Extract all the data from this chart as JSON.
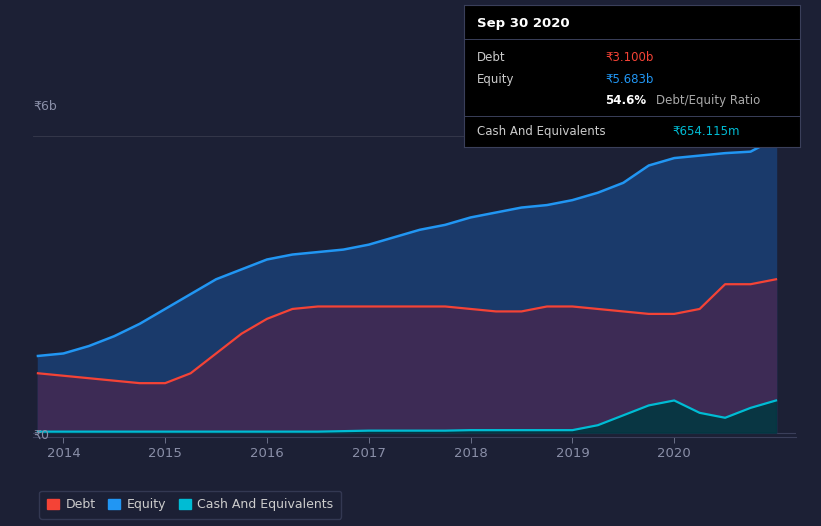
{
  "background_color": "#1c2035",
  "plot_bg_color": "#1c2035",
  "tooltip_box": {
    "title": "Sep 30 2020",
    "debt_label": "Debt",
    "debt_value": "₹3.100b",
    "equity_label": "Equity",
    "equity_value": "₹5.683b",
    "ratio_value": "54.6%",
    "ratio_label": " Debt/Equity Ratio",
    "cash_label": "Cash And Equivalents",
    "cash_value": "₹654.115m"
  },
  "ylabel_top": "₹6b",
  "ylabel_bottom": "₹0",
  "x_ticks": [
    2014,
    2015,
    2016,
    2017,
    2018,
    2019,
    2020
  ],
  "x_min": 2013.7,
  "x_max": 2021.2,
  "y_min": -0.08,
  "y_max": 6.3,
  "equity_color": "#2196f3",
  "debt_color": "#f44336",
  "cash_color": "#00bcd4",
  "equity_fill_color": "#1a3a6b",
  "debt_fill_color": "#3d2b55",
  "cash_fill_color": "#003840",
  "legend_items": [
    "Debt",
    "Equity",
    "Cash And Equivalents"
  ],
  "legend_colors": [
    "#f44336",
    "#2196f3",
    "#00bcd4"
  ],
  "years": [
    2013.75,
    2014.0,
    2014.25,
    2014.5,
    2014.75,
    2015.0,
    2015.25,
    2015.5,
    2015.75,
    2016.0,
    2016.25,
    2016.5,
    2016.75,
    2017.0,
    2017.25,
    2017.5,
    2017.75,
    2018.0,
    2018.25,
    2018.5,
    2018.75,
    2019.0,
    2019.25,
    2019.5,
    2019.75,
    2020.0,
    2020.25,
    2020.5,
    2020.75,
    2021.0
  ],
  "equity_data": [
    1.55,
    1.6,
    1.75,
    1.95,
    2.2,
    2.5,
    2.8,
    3.1,
    3.3,
    3.5,
    3.6,
    3.65,
    3.7,
    3.8,
    3.95,
    4.1,
    4.2,
    4.35,
    4.45,
    4.55,
    4.6,
    4.7,
    4.85,
    5.05,
    5.4,
    5.55,
    5.6,
    5.65,
    5.68,
    5.95
  ],
  "debt_data": [
    1.2,
    1.15,
    1.1,
    1.05,
    1.0,
    1.0,
    1.2,
    1.6,
    2.0,
    2.3,
    2.5,
    2.55,
    2.55,
    2.55,
    2.55,
    2.55,
    2.55,
    2.5,
    2.45,
    2.45,
    2.55,
    2.55,
    2.5,
    2.45,
    2.4,
    2.4,
    2.5,
    3.0,
    3.0,
    3.1
  ],
  "cash_data": [
    0.02,
    0.02,
    0.02,
    0.02,
    0.02,
    0.02,
    0.02,
    0.02,
    0.02,
    0.02,
    0.02,
    0.02,
    0.03,
    0.04,
    0.04,
    0.04,
    0.04,
    0.05,
    0.05,
    0.05,
    0.05,
    0.05,
    0.15,
    0.35,
    0.55,
    0.65,
    0.4,
    0.3,
    0.5,
    0.65
  ]
}
